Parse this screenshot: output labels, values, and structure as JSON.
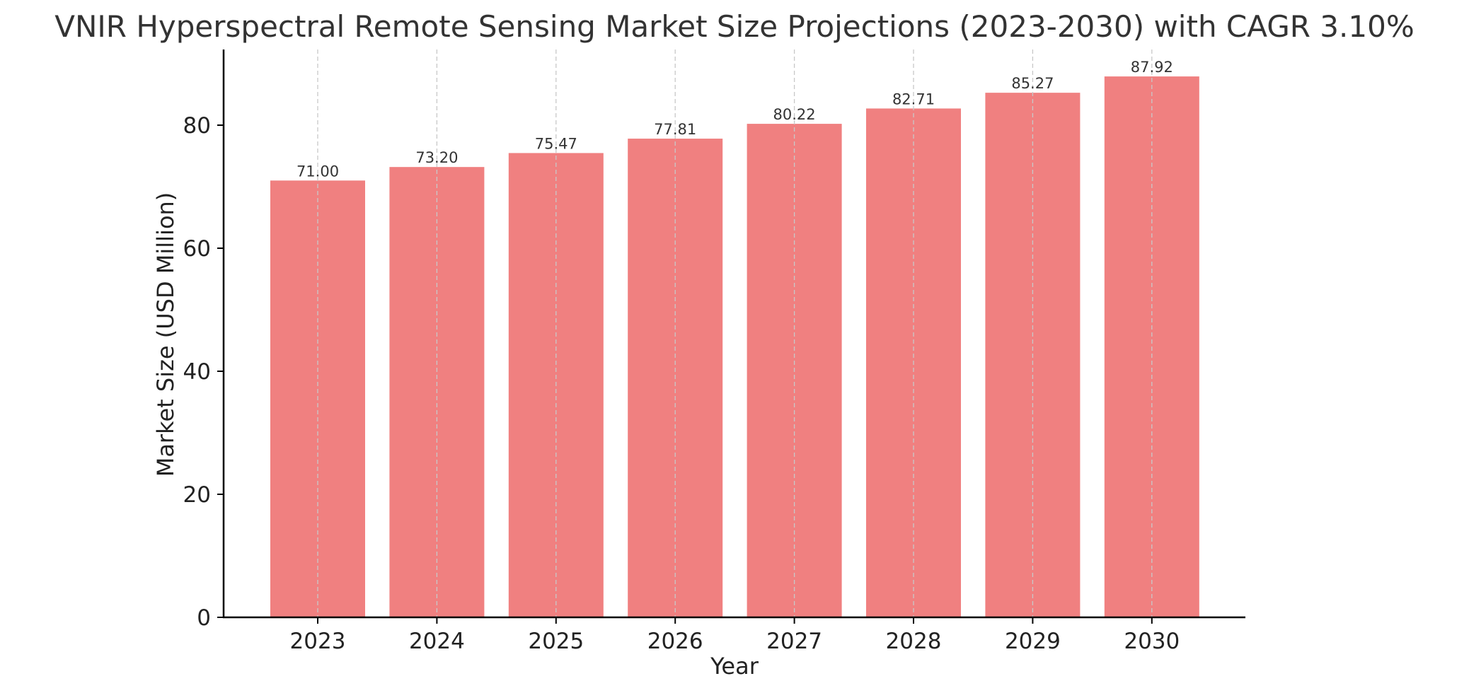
{
  "chart_data": {
    "type": "bar",
    "title": "VNIR Hyperspectral Remote Sensing Market Size Projections (2023-2030) with CAGR 3.10%",
    "xlabel": "Year",
    "ylabel": "Market Size (USD Million)",
    "categories": [
      "2023",
      "2024",
      "2025",
      "2026",
      "2027",
      "2028",
      "2029",
      "2030"
    ],
    "values": [
      71.0,
      73.2,
      75.47,
      77.81,
      80.22,
      82.71,
      85.27,
      87.92
    ],
    "data_labels": [
      "71.00",
      "73.20",
      "75.47",
      "77.81",
      "80.22",
      "82.71",
      "85.27",
      "87.92"
    ],
    "ylim": [
      0,
      92.3
    ],
    "yticks": [
      0,
      20,
      40,
      60,
      80
    ],
    "grid": "vertical dashed",
    "legend": "none",
    "bar_color": "#f08080",
    "grid_color": "#c8c8c8",
    "axis_color": "#000000"
  }
}
